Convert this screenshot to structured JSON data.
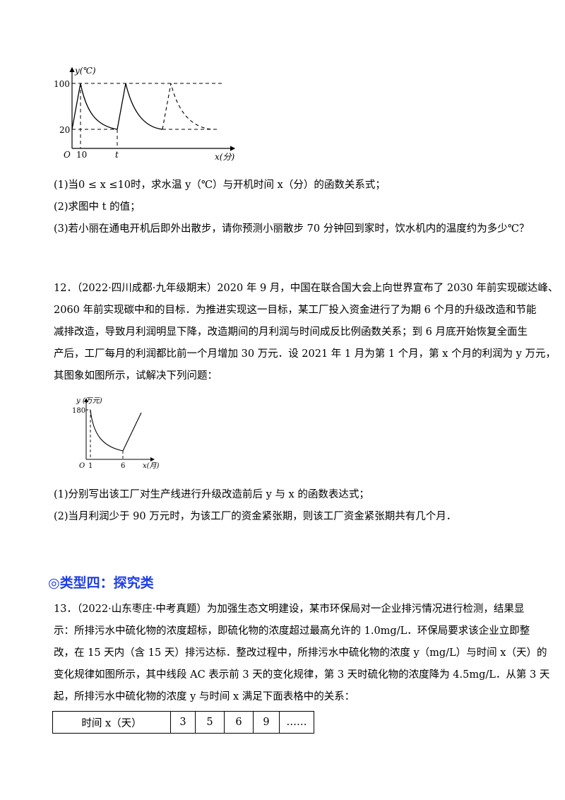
{
  "graph1": {
    "y_axis_label": "y(℃)",
    "x_axis_label": "x(分)",
    "origin": "O",
    "y_ticks": [
      "100",
      "20"
    ],
    "x_ticks": [
      "10",
      "t"
    ]
  },
  "q11": {
    "p1": "(1)当0 ≤ x ≤10时，求水温 y（℃）与开机时间 x（分）的函数关系式；",
    "p2": "(2)求图中 t 的值；",
    "p3": "(3)若小丽在通电开机后即外出散步，请你预测小丽散步 70 分钟回到家时，饮水机内的温度约为多少℃？"
  },
  "q12": {
    "lines": [
      "12．（2022·四川成都·九年级期末）2020 年 9 月，中国在联合国大会上向世界宣布了 2030 年前实现碳达峰、",
      "2060 年前实现碳中和的目标．为推进实现这一目标，某工厂投入资金进行了为期 6 个月的升级改造和节能",
      "减排改造，导致月利润明显下降，改造期间的月利润与时间成反比例函数关系；到 6 月底开始恢复全面生",
      "产后，工厂每月的利润都比前一个月增加 30 万元．设 2021 年 1 月为第 1 个月，第 x 个月的利润为 y 万元，",
      "其图象如图所示，试解决下列问题："
    ],
    "graph": {
      "y_axis_label": "y (万元)",
      "x_axis_label": "x(月)",
      "origin": "O",
      "y_tick": "180",
      "x_ticks": [
        "1",
        "6"
      ]
    },
    "p1": "(1)分别写出该工厂对生产线进行升级改造前后 y 与 x 的函数表达式；",
    "p2": "(2)当月利润少于 90 万元时，为该工厂的资金紧张期，则该工厂资金紧张期共有几个月．"
  },
  "section4": {
    "title": "◎类型四：探究类"
  },
  "q13": {
    "lines": [
      "13．（2022·山东枣庄·中考真题）为加强生态文明建设，某市环保局对一企业排污情况进行检测，结果显",
      "示：所排污水中硫化物的浓度超标，即硫化物的浓度超过最高允许的 1.0mg/L．环保局要求该企业立即整",
      "改，在 15 天内（含 15 天）排污达标．整改过程中，所排污水中硫化物的浓度 y（mg/L）与时间 x（天）的",
      "变化规律如图所示，其中线段 AC 表示前 3 天的变化规律，第 3 天时硫化物的浓度降为 4.5mg/L．从第 3 天",
      "起，所排污水中硫化物的浓度 y 与时间 x 满足下面表格中的关系："
    ],
    "table": {
      "header": "时间 x（天）",
      "values": [
        "3",
        "5",
        "6",
        "9",
        "……"
      ]
    }
  }
}
